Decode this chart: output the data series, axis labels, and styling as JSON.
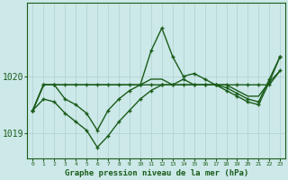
{
  "bg_color": "#cce8e8",
  "grid_color": "#b0d0d0",
  "line_color": "#1a5c1a",
  "title": "Graphe pression niveau de la mer (hPa)",
  "xlabel_ticks": [
    0,
    1,
    2,
    3,
    4,
    5,
    6,
    7,
    8,
    9,
    10,
    11,
    12,
    13,
    14,
    15,
    16,
    17,
    18,
    19,
    20,
    21,
    22,
    23
  ],
  "ylim": [
    1018.55,
    1021.3
  ],
  "yticks": [
    1019,
    1020
  ],
  "series": [
    {
      "data": [
        1019.4,
        1019.85,
        1019.85,
        1019.85,
        1019.85,
        1019.85,
        1019.85,
        1019.85,
        1019.85,
        1019.85,
        1019.85,
        1019.85,
        1019.85,
        1019.85,
        1019.85,
        1019.85,
        1019.85,
        1019.85,
        1019.85,
        1019.85,
        1019.85,
        1019.85,
        1019.85,
        1020.1
      ],
      "lw": 1.0,
      "marker": true
    },
    {
      "data": [
        1019.4,
        1019.85,
        1019.85,
        1019.85,
        1019.85,
        1019.85,
        1019.85,
        1019.85,
        1019.85,
        1019.85,
        1019.85,
        1019.95,
        1019.95,
        1019.85,
        1019.85,
        1019.85,
        1019.85,
        1019.85,
        1019.85,
        1019.75,
        1019.65,
        1019.65,
        1019.9,
        1020.1
      ],
      "lw": 1.0,
      "marker": false
    },
    {
      "data": [
        1019.4,
        1019.85,
        1019.85,
        1019.6,
        1019.5,
        1019.35,
        1019.05,
        1019.4,
        1019.6,
        1019.75,
        1019.85,
        1020.45,
        1020.85,
        1020.35,
        1020.0,
        1020.05,
        1019.95,
        1019.85,
        1019.8,
        1019.7,
        1019.6,
        1019.55,
        1019.95,
        1020.35
      ],
      "lw": 1.0,
      "marker": true
    },
    {
      "data": [
        1019.4,
        1019.6,
        1019.55,
        1019.35,
        1019.2,
        1019.05,
        1018.75,
        1018.95,
        1019.2,
        1019.4,
        1019.6,
        1019.75,
        1019.85,
        1019.85,
        1019.95,
        1019.85,
        1019.85,
        1019.85,
        1019.75,
        1019.65,
        1019.55,
        1019.5,
        1019.9,
        1020.35
      ],
      "lw": 1.0,
      "marker": true
    }
  ]
}
